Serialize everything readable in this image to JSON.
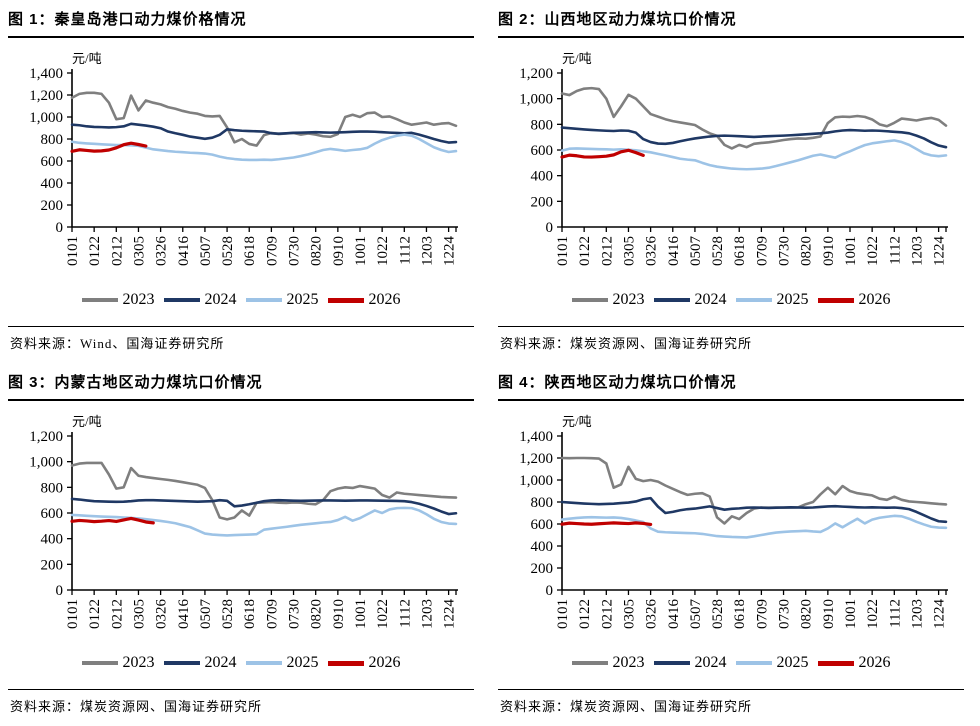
{
  "colors": {
    "axis": "#000000",
    "y2023": "#7F7F7F",
    "y2024": "#1F3864",
    "y2025": "#9DC3E6",
    "y2026": "#C00000"
  },
  "x_tick_labels": [
    "0101",
    "0122",
    "0212",
    "0305",
    "0326",
    "0416",
    "0507",
    "0528",
    "0618",
    "0709",
    "0730",
    "0820",
    "0910",
    "1001",
    "1022",
    "1112",
    "1203",
    "1224"
  ],
  "chart_data": [
    {
      "type": "line",
      "title": "图 1：秦皇岛港口动力煤价格情况",
      "unit": "元/吨",
      "source": "资料来源：Wind、国海证券研究所",
      "ylim": [
        0,
        1400
      ],
      "y_step": 200,
      "grid": false,
      "legend_position": "bottom",
      "x_tick_labels": [
        "0101",
        "0122",
        "0212",
        "0305",
        "0326",
        "0416",
        "0507",
        "0528",
        "0618",
        "0709",
        "0730",
        "0820",
        "0910",
        "1001",
        "1022",
        "1112",
        "1203",
        "1224"
      ],
      "x_note": "weekly points, Jan–Dec (MMDD)",
      "series": [
        {
          "name": "2023",
          "color": "#7F7F7F",
          "values": [
            1175,
            1210,
            1220,
            1220,
            1210,
            1130,
            980,
            990,
            1195,
            1060,
            1150,
            1130,
            1115,
            1090,
            1075,
            1055,
            1040,
            1030,
            1010,
            1005,
            1010,
            905,
            770,
            800,
            755,
            740,
            835,
            855,
            845,
            850,
            855,
            840,
            850,
            840,
            825,
            820,
            845,
            1000,
            1020,
            1000,
            1035,
            1040,
            1000,
            1005,
            980,
            950,
            930,
            940,
            950,
            930,
            940,
            945,
            920
          ]
        },
        {
          "name": "2024",
          "color": "#1F3864",
          "values": [
            930,
            925,
            915,
            910,
            908,
            905,
            908,
            915,
            938,
            930,
            922,
            912,
            898,
            868,
            852,
            838,
            822,
            812,
            802,
            812,
            838,
            888,
            880,
            875,
            872,
            870,
            868,
            852,
            848,
            852,
            856,
            858,
            860,
            862,
            860,
            858,
            860,
            862,
            865,
            868,
            868,
            866,
            862,
            858,
            855,
            852,
            856,
            840,
            820,
            800,
            782,
            768,
            772
          ]
        },
        {
          "name": "2025",
          "color": "#9DC3E6",
          "values": [
            775,
            765,
            760,
            756,
            752,
            748,
            745,
            745,
            742,
            738,
            722,
            706,
            698,
            690,
            684,
            680,
            675,
            672,
            668,
            658,
            640,
            626,
            618,
            612,
            610,
            610,
            612,
            610,
            616,
            624,
            632,
            645,
            660,
            680,
            700,
            710,
            702,
            692,
            700,
            706,
            720,
            758,
            790,
            812,
            830,
            840,
            830,
            800,
            762,
            725,
            700,
            682,
            690
          ]
        },
        {
          "name": "2026",
          "color": "#C00000",
          "values": [
            688,
            702,
            696,
            690,
            692,
            700,
            720,
            748,
            762,
            750,
            736
          ]
        }
      ]
    },
    {
      "type": "line",
      "title": "图 2：山西地区动力煤坑口价情况",
      "unit": "元/吨",
      "source": "资料来源：煤炭资源网、国海证券研究所",
      "ylim": [
        0,
        1200
      ],
      "y_step": 200,
      "grid": false,
      "legend_position": "bottom",
      "x_tick_labels": [
        "0101",
        "0122",
        "0212",
        "0305",
        "0326",
        "0416",
        "0507",
        "0528",
        "0618",
        "0709",
        "0730",
        "0820",
        "0910",
        "1001",
        "1022",
        "1112",
        "1203",
        "1224"
      ],
      "x_note": "weekly points, Jan–Dec (MMDD)",
      "series": [
        {
          "name": "2023",
          "color": "#7F7F7F",
          "values": [
            1040,
            1028,
            1060,
            1078,
            1082,
            1075,
            1000,
            858,
            940,
            1030,
            1000,
            940,
            880,
            860,
            840,
            825,
            815,
            805,
            795,
            760,
            730,
            710,
            640,
            612,
            640,
            622,
            648,
            655,
            660,
            668,
            678,
            685,
            690,
            688,
            695,
            705,
            810,
            855,
            860,
            858,
            865,
            858,
            838,
            800,
            785,
            812,
            845,
            838,
            830,
            842,
            850,
            835,
            790
          ]
        },
        {
          "name": "2024",
          "color": "#1F3864",
          "values": [
            775,
            770,
            765,
            760,
            756,
            753,
            750,
            748,
            752,
            750,
            735,
            685,
            662,
            650,
            648,
            655,
            668,
            680,
            690,
            698,
            705,
            710,
            712,
            710,
            708,
            705,
            702,
            705,
            708,
            710,
            712,
            715,
            718,
            722,
            726,
            730,
            736,
            745,
            752,
            755,
            753,
            750,
            752,
            750,
            746,
            742,
            738,
            730,
            712,
            690,
            660,
            635,
            622
          ]
        },
        {
          "name": "2025",
          "color": "#9DC3E6",
          "values": [
            595,
            610,
            612,
            610,
            608,
            606,
            605,
            603,
            605,
            602,
            598,
            590,
            582,
            570,
            558,
            545,
            532,
            525,
            520,
            500,
            482,
            470,
            462,
            455,
            452,
            450,
            452,
            455,
            462,
            475,
            490,
            505,
            520,
            538,
            555,
            565,
            552,
            540,
            568,
            590,
            615,
            638,
            652,
            660,
            668,
            675,
            662,
            640,
            608,
            575,
            558,
            552,
            558
          ]
        },
        {
          "name": "2026",
          "color": "#C00000",
          "values": [
            545,
            560,
            555,
            546,
            545,
            548,
            552,
            562,
            586,
            598,
            580,
            558
          ]
        }
      ]
    },
    {
      "type": "line",
      "title": "图 3：内蒙古地区动力煤坑口价情况",
      "unit": "元/吨",
      "source": "资料来源：煤炭资源网、国海证券研究所",
      "ylim": [
        0,
        1200
      ],
      "y_step": 200,
      "grid": false,
      "legend_position": "bottom",
      "x_tick_labels": [
        "0101",
        "0122",
        "0212",
        "0305",
        "0326",
        "0416",
        "0507",
        "0528",
        "0618",
        "0709",
        "0730",
        "0820",
        "0910",
        "1001",
        "1022",
        "1112",
        "1203",
        "1224"
      ],
      "x_note": "weekly points, Jan–Dec (MMDD)",
      "series": [
        {
          "name": "2023",
          "color": "#7F7F7F",
          "values": [
            970,
            985,
            990,
            990,
            990,
            900,
            790,
            800,
            950,
            890,
            880,
            872,
            865,
            858,
            850,
            840,
            830,
            820,
            795,
            700,
            565,
            550,
            565,
            620,
            580,
            680,
            682,
            685,
            680,
            678,
            682,
            680,
            672,
            668,
            700,
            770,
            790,
            800,
            795,
            810,
            800,
            790,
            740,
            720,
            760,
            750,
            745,
            740,
            735,
            730,
            725,
            722,
            720
          ]
        },
        {
          "name": "2024",
          "color": "#1F3864",
          "values": [
            710,
            705,
            698,
            692,
            690,
            688,
            687,
            688,
            692,
            698,
            700,
            700,
            698,
            696,
            694,
            692,
            690,
            688,
            690,
            692,
            700,
            695,
            652,
            658,
            668,
            680,
            692,
            698,
            700,
            698,
            696,
            695,
            696,
            697,
            698,
            698,
            697,
            696,
            697,
            698,
            698,
            697,
            696,
            695,
            694,
            692,
            685,
            672,
            655,
            635,
            612,
            592,
            598
          ]
        },
        {
          "name": "2025",
          "color": "#9DC3E6",
          "values": [
            585,
            582,
            578,
            575,
            572,
            570,
            568,
            565,
            562,
            558,
            552,
            545,
            538,
            530,
            520,
            505,
            490,
            465,
            440,
            432,
            428,
            425,
            428,
            430,
            432,
            435,
            470,
            478,
            485,
            492,
            500,
            508,
            514,
            520,
            526,
            530,
            545,
            570,
            540,
            560,
            590,
            620,
            600,
            628,
            638,
            640,
            638,
            620,
            590,
            555,
            530,
            518,
            515
          ]
        },
        {
          "name": "2026",
          "color": "#C00000",
          "values": [
            535,
            542,
            538,
            533,
            536,
            541,
            534,
            546,
            558,
            545,
            530,
            523
          ]
        }
      ]
    },
    {
      "type": "line",
      "title": "图 4：陕西地区动力煤坑口价情况",
      "unit": "元/吨",
      "source": "资料来源：煤炭资源网、国海证券研究所",
      "ylim": [
        0,
        1400
      ],
      "y_step": 200,
      "grid": false,
      "legend_position": "bottom",
      "x_tick_labels": [
        "0101",
        "0122",
        "0212",
        "0305",
        "0326",
        "0416",
        "0507",
        "0528",
        "0618",
        "0709",
        "0730",
        "0820",
        "0910",
        "1001",
        "1022",
        "1112",
        "1203",
        "1224"
      ],
      "x_note": "weekly points, Jan–Dec (MMDD)",
      "series": [
        {
          "name": "2023",
          "color": "#7F7F7F",
          "values": [
            1200,
            1198,
            1200,
            1200,
            1198,
            1195,
            1150,
            930,
            960,
            1120,
            1010,
            990,
            1000,
            985,
            950,
            920,
            890,
            865,
            875,
            880,
            850,
            660,
            605,
            670,
            645,
            700,
            740,
            750,
            748,
            750,
            748,
            750,
            752,
            780,
            800,
            870,
            930,
            870,
            945,
            900,
            880,
            870,
            860,
            830,
            820,
            848,
            820,
            805,
            800,
            795,
            788,
            782,
            778
          ]
        },
        {
          "name": "2024",
          "color": "#1F3864",
          "values": [
            800,
            795,
            790,
            786,
            783,
            780,
            782,
            785,
            790,
            795,
            805,
            825,
            835,
            758,
            700,
            710,
            725,
            735,
            740,
            750,
            760,
            745,
            730,
            738,
            742,
            748,
            750,
            748,
            746,
            748,
            750,
            752,
            750,
            748,
            750,
            755,
            760,
            762,
            758,
            755,
            752,
            750,
            752,
            750,
            748,
            750,
            745,
            735,
            710,
            680,
            650,
            625,
            620
          ]
        },
        {
          "name": "2025",
          "color": "#9DC3E6",
          "values": [
            640,
            648,
            655,
            660,
            662,
            660,
            658,
            660,
            655,
            645,
            632,
            618,
            560,
            530,
            525,
            522,
            520,
            518,
            516,
            510,
            500,
            490,
            486,
            482,
            480,
            478,
            488,
            500,
            512,
            522,
            528,
            532,
            535,
            538,
            532,
            528,
            560,
            605,
            570,
            610,
            648,
            605,
            640,
            657,
            666,
            674,
            670,
            648,
            620,
            596,
            575,
            568,
            565
          ]
        },
        {
          "name": "2026",
          "color": "#C00000",
          "values": [
            598,
            608,
            604,
            600,
            598,
            602,
            606,
            610,
            607,
            604,
            610,
            605,
            596
          ]
        }
      ]
    }
  ]
}
